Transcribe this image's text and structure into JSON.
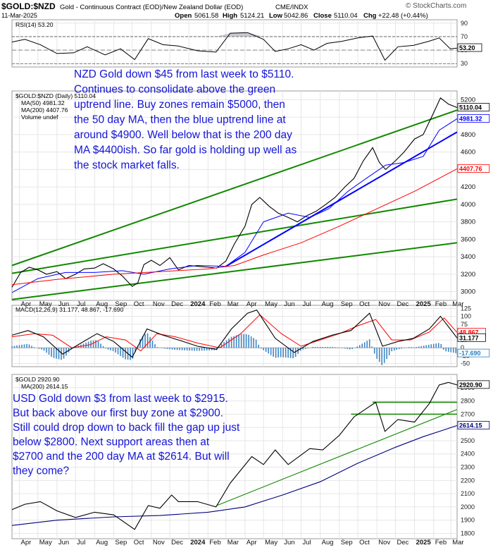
{
  "header": {
    "symbol": "$GOLD:$NZD",
    "description": "Gold - Continuous Contract (EOD)/New Zealand Dollar (EOD)",
    "exchange": "CME/INDX",
    "date": "11-Mar-2025",
    "open_label": "Open",
    "open": "5061.58",
    "high_label": "High",
    "high": "5124.21",
    "low_label": "Low",
    "low": "5042.86",
    "close_label": "Close",
    "close": "5110.04",
    "chg_label": "Chg",
    "chg": "+22.48 (+0.44%)",
    "brand": "© StockCharts.com"
  },
  "x_axis": {
    "labels": [
      "Apr",
      "May",
      "Jun",
      "Jul",
      "Aug",
      "Sep",
      "Oct",
      "Nov",
      "Dec",
      "2024",
      "Feb",
      "Mar",
      "Apr",
      "May",
      "Jun",
      "Jul",
      "Aug",
      "Sep",
      "Oct",
      "Nov",
      "Dec",
      "2025",
      "Feb",
      "Mar"
    ],
    "start": "2023-03-20",
    "end": "2025-03-11"
  },
  "chart_data": [
    {
      "type": "line",
      "panel": "rsi",
      "legend": "RSI(14) 53.20",
      "y_ticks": [
        30,
        50,
        70,
        90
      ],
      "ylim": [
        25,
        95
      ],
      "reference_lines": [
        30,
        70
      ],
      "last_value": "53.20",
      "series": [
        {
          "name": "RSI(14)",
          "color": "#000000",
          "x": [
            "2023-03-20",
            "2023-04-10",
            "2023-05-05",
            "2023-06-01",
            "2023-06-28",
            "2023-07-20",
            "2023-08-18",
            "2023-09-12",
            "2023-10-05",
            "2023-10-27",
            "2023-11-20",
            "2023-12-15",
            "2024-01-15",
            "2024-02-14",
            "2024-03-08",
            "2024-04-05",
            "2024-05-01",
            "2024-05-20",
            "2024-06-10",
            "2024-07-01",
            "2024-07-22",
            "2024-08-12",
            "2024-09-05",
            "2024-10-01",
            "2024-10-25",
            "2024-11-14",
            "2024-12-05",
            "2024-12-30",
            "2025-01-24",
            "2025-02-10",
            "2025-02-28",
            "2025-03-11"
          ],
          "values": [
            62,
            66,
            58,
            45,
            46,
            55,
            43,
            52,
            36,
            67,
            58,
            56,
            49,
            47,
            75,
            76,
            66,
            48,
            52,
            58,
            50,
            60,
            63,
            68,
            71,
            35,
            55,
            57,
            63,
            68,
            52,
            53
          ]
        }
      ]
    },
    {
      "type": "line",
      "panel": "price",
      "legend": [
        "$GOLD:$NZD (Daily) 5110.04",
        "MA(50) 4981.32",
        "MA(200) 4407.76",
        "Volume undef"
      ],
      "y_ticks": [
        3000,
        3200,
        3400,
        3600,
        3800,
        4000,
        4200,
        4400,
        4600,
        4800,
        5000,
        5200
      ],
      "ylim": [
        2900,
        5300
      ],
      "badges": [
        {
          "label": "5110.04",
          "value": 5110.04,
          "color": "#000000"
        },
        {
          "label": "4981.32",
          "value": 4981.32,
          "color": "#0000ff"
        },
        {
          "label": "4407.76",
          "value": 4407.76,
          "color": "#ff0000"
        }
      ],
      "series": [
        {
          "name": "$GOLD:$NZD (Daily)",
          "color": "#000000",
          "x": [
            "2023-03-20",
            "2023-04-03",
            "2023-04-17",
            "2023-05-01",
            "2023-05-15",
            "2023-06-01",
            "2023-06-15",
            "2023-07-01",
            "2023-07-15",
            "2023-08-01",
            "2023-08-15",
            "2023-09-01",
            "2023-09-15",
            "2023-10-01",
            "2023-10-10",
            "2023-10-20",
            "2023-11-01",
            "2023-11-15",
            "2023-12-01",
            "2023-12-15",
            "2024-01-01",
            "2024-01-15",
            "2024-02-01",
            "2024-02-15",
            "2024-03-01",
            "2024-03-15",
            "2024-04-01",
            "2024-04-12",
            "2024-04-25",
            "2024-05-10",
            "2024-05-25",
            "2024-06-10",
            "2024-06-25",
            "2024-07-10",
            "2024-07-25",
            "2024-08-10",
            "2024-08-25",
            "2024-09-10",
            "2024-09-25",
            "2024-10-10",
            "2024-10-25",
            "2024-11-05",
            "2024-11-15",
            "2024-12-01",
            "2024-12-15",
            "2025-01-01",
            "2025-01-15",
            "2025-02-01",
            "2025-02-12",
            "2025-02-25",
            "2025-03-11"
          ],
          "values": [
            3050,
            3220,
            3280,
            3250,
            3200,
            3230,
            3150,
            3200,
            3260,
            3270,
            3320,
            3260,
            3180,
            3060,
            3100,
            3310,
            3360,
            3300,
            3390,
            3250,
            3300,
            3290,
            3280,
            3270,
            3350,
            3550,
            3750,
            4000,
            4080,
            3980,
            3900,
            3850,
            3800,
            3870,
            3920,
            4000,
            4080,
            4200,
            4300,
            4500,
            4650,
            4480,
            4400,
            4500,
            4600,
            4750,
            4800,
            5050,
            5220,
            5150,
            5110.04
          ]
        },
        {
          "name": "MA(50)",
          "color": "#0000ff",
          "x": [
            "2023-03-20",
            "2023-05-01",
            "2023-06-15",
            "2023-08-01",
            "2023-09-15",
            "2023-10-20",
            "2023-12-01",
            "2024-01-15",
            "2024-03-01",
            "2024-04-01",
            "2024-05-01",
            "2024-06-10",
            "2024-07-15",
            "2024-08-15",
            "2024-09-15",
            "2024-10-15",
            "2024-11-15",
            "2024-12-15",
            "2025-01-15",
            "2025-02-10",
            "2025-03-11"
          ],
          "values": [
            2990,
            3150,
            3220,
            3220,
            3240,
            3200,
            3260,
            3300,
            3290,
            3450,
            3800,
            3900,
            3850,
            3950,
            4150,
            4300,
            4450,
            4480,
            4550,
            4850,
            4981.32
          ]
        },
        {
          "name": "MA(200)",
          "color": "#ff0000",
          "x": [
            "2023-03-20",
            "2023-06-01",
            "2023-09-01",
            "2023-11-15",
            "2024-02-01",
            "2024-03-15",
            "2024-05-01",
            "2024-07-01",
            "2024-09-01",
            "2024-11-01",
            "2025-01-01",
            "2025-03-11"
          ],
          "values": [
            3080,
            3140,
            3200,
            3230,
            3260,
            3300,
            3420,
            3560,
            3750,
            3950,
            4150,
            4407.76
          ]
        }
      ],
      "trend_lines": [
        {
          "color": "#118800",
          "x": [
            "2023-03-20",
            "2025-03-11"
          ],
          "values": [
            3300,
            5080
          ]
        },
        {
          "color": "#118800",
          "x": [
            "2023-03-20",
            "2025-03-11"
          ],
          "values": [
            3210,
            4060
          ]
        },
        {
          "color": "#118800",
          "x": [
            "2023-03-20",
            "2025-03-11"
          ],
          "values": [
            2910,
            3560
          ]
        },
        {
          "color": "#0000ff",
          "x": [
            "2024-03-01",
            "2025-03-11"
          ],
          "values": [
            3290,
            4830
          ]
        }
      ],
      "annotation": "NZD Gold down $45 from last week to $5110. Continues to consolidate above the green uptrend line. Buy zones remain $5000, then the 50 day MA, then the blue uptrend line at around $4900. Well below that is the 200 day MA $4400ish. So far gold is holding up well as the stock market falls."
    },
    {
      "type": "line",
      "panel": "macd",
      "legend": "MACD(12,26,9) 31.177, 48.867, -17.690",
      "y_ticks": [
        -50,
        -25,
        0,
        25,
        50,
        75,
        100,
        125
      ],
      "ylim": [
        -60,
        135
      ],
      "badges": [
        {
          "label": "48.867",
          "value": 48.867,
          "color": "#ff0000"
        },
        {
          "label": "31.177",
          "value": 31.177,
          "color": "#000000"
        },
        {
          "label": "-17.690",
          "value": -17.69,
          "color": "#2a7fbf"
        }
      ],
      "series": [
        {
          "name": "MACD",
          "color": "#000000",
          "x": [
            "2023-03-20",
            "2023-04-15",
            "2023-05-10",
            "2023-06-10",
            "2023-07-10",
            "2023-08-05",
            "2023-09-01",
            "2023-10-01",
            "2023-10-25",
            "2023-11-20",
            "2023-12-15",
            "2024-01-15",
            "2024-02-15",
            "2024-03-10",
            "2024-04-05",
            "2024-04-20",
            "2024-05-20",
            "2024-06-20",
            "2024-07-20",
            "2024-08-20",
            "2024-09-20",
            "2024-10-20",
            "2024-11-10",
            "2024-12-05",
            "2024-12-30",
            "2025-01-25",
            "2025-02-12",
            "2025-03-11"
          ],
          "values": [
            40,
            55,
            35,
            -20,
            15,
            45,
            20,
            -30,
            60,
            40,
            25,
            5,
            -5,
            60,
            110,
            120,
            30,
            -15,
            20,
            40,
            55,
            110,
            5,
            20,
            30,
            60,
            100,
            31.177
          ]
        },
        {
          "name": "Signal",
          "color": "#ff0000",
          "x": [
            "2023-03-20",
            "2023-04-25",
            "2023-05-25",
            "2023-06-25",
            "2023-07-25",
            "2023-08-20",
            "2023-09-20",
            "2023-10-15",
            "2023-11-10",
            "2023-12-10",
            "2024-01-15",
            "2024-02-20",
            "2024-03-25",
            "2024-04-25",
            "2024-05-30",
            "2024-07-01",
            "2024-08-01",
            "2024-09-01",
            "2024-10-01",
            "2024-10-30",
            "2024-11-25",
            "2024-12-25",
            "2025-01-25",
            "2025-02-18",
            "2025-03-11"
          ],
          "values": [
            35,
            45,
            40,
            0,
            10,
            35,
            25,
            -10,
            45,
            35,
            15,
            0,
            45,
            105,
            45,
            5,
            25,
            45,
            70,
            90,
            25,
            25,
            50,
            95,
            48.867
          ]
        }
      ]
    },
    {
      "type": "line",
      "panel": "usd",
      "legend": [
        "$GOLD 2920.90",
        "MA(200) 2614.15"
      ],
      "y_ticks": [
        1800,
        1900,
        2000,
        2100,
        2200,
        2300,
        2400,
        2500,
        2600,
        2700,
        2800,
        2900
      ],
      "ylim": [
        1760,
        3000
      ],
      "badges": [
        {
          "label": "2920.90",
          "value": 2920.9,
          "color": "#000000"
        },
        {
          "label": "2614.15",
          "value": 2614.15,
          "color": "#000080"
        }
      ],
      "series": [
        {
          "name": "$GOLD",
          "color": "#000000",
          "x": [
            "2023-03-20",
            "2023-04-10",
            "2023-05-05",
            "2023-06-01",
            "2023-07-01",
            "2023-08-01",
            "2023-09-01",
            "2023-10-05",
            "2023-10-27",
            "2023-11-15",
            "2023-12-04",
            "2023-12-15",
            "2024-01-15",
            "2024-02-14",
            "2024-03-08",
            "2024-04-12",
            "2024-05-01",
            "2024-05-20",
            "2024-06-10",
            "2024-07-15",
            "2024-08-05",
            "2024-09-01",
            "2024-09-25",
            "2024-10-30",
            "2024-11-14",
            "2024-12-05",
            "2025-01-01",
            "2025-01-25",
            "2025-02-10",
            "2025-02-25",
            "2025-03-11"
          ],
          "values": [
            1980,
            2020,
            2040,
            1970,
            1920,
            1960,
            1940,
            1830,
            2010,
            1990,
            2090,
            2040,
            2040,
            2000,
            2180,
            2380,
            2320,
            2430,
            2320,
            2440,
            2430,
            2540,
            2680,
            2790,
            2570,
            2660,
            2640,
            2780,
            2920,
            2940,
            2920.9
          ]
        },
        {
          "name": "MA(200)",
          "color": "#000080",
          "x": [
            "2023-03-20",
            "2023-06-01",
            "2023-09-01",
            "2023-11-15",
            "2024-02-01",
            "2024-04-01",
            "2024-06-01",
            "2024-08-01",
            "2024-10-01",
            "2024-12-01",
            "2025-01-15",
            "2025-03-11"
          ],
          "values": [
            1860,
            1900,
            1925,
            1935,
            1960,
            2000,
            2090,
            2190,
            2330,
            2450,
            2530,
            2614.15
          ]
        }
      ],
      "trend_lines": [
        {
          "color": "#118800",
          "x": [
            "2024-02-15",
            "2025-03-11"
          ],
          "values": [
            2010,
            2735
          ]
        }
      ],
      "h_lines": [
        {
          "color": "#118800",
          "value": 2790,
          "x": [
            "2024-10-25",
            "2025-03-11"
          ]
        },
        {
          "color": "#118800",
          "value": 2700,
          "x": [
            "2024-09-20",
            "2025-03-11"
          ]
        }
      ],
      "annotation": "USD Gold down $3 from last week to $2915. But back above our first buy zone at $2900. Still could drop down to back fill the gap up just below $2800. Next support areas then at $2700 and the 200 day MA at $2614. But will they come?"
    }
  ]
}
